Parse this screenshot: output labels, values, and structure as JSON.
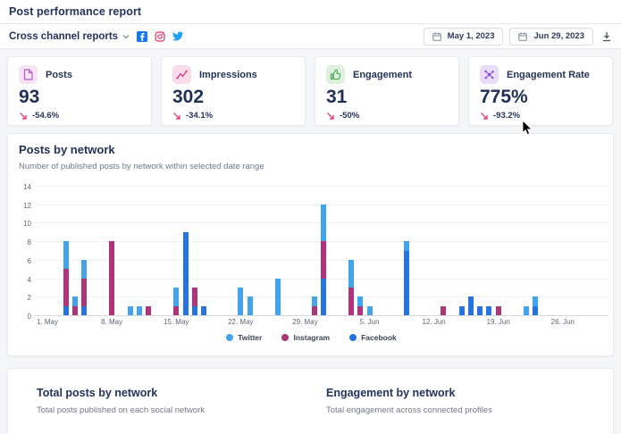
{
  "header": {
    "title": "Post performance report"
  },
  "toolbar": {
    "report_selector": "Cross channel reports",
    "icons": [
      "facebook-icon",
      "instagram-icon",
      "twitter-icon"
    ],
    "date_from": "May 1, 2023",
    "date_to": "Jun 29, 2023",
    "download_icon": "download-icon"
  },
  "stats": [
    {
      "label": "Posts",
      "value": "93",
      "change": "-54.6%",
      "icon": "posts-icon",
      "icon_bg": "#f6e4f5",
      "icon_color": "#b35cc4",
      "change_arrow_color": "#e0447c"
    },
    {
      "label": "Impressions",
      "value": "302",
      "change": "-34.1%",
      "icon": "impressions-icon",
      "icon_bg": "#fadbe9",
      "icon_color": "#d63384",
      "change_arrow_color": "#e0447c"
    },
    {
      "label": "Engagement",
      "value": "31",
      "change": "-50%",
      "icon": "engagement-icon",
      "icon_bg": "#def0de",
      "icon_color": "#44a04a",
      "change_arrow_color": "#e0447c"
    },
    {
      "label": "Engagement Rate",
      "value": "775%",
      "change": "-93.2%",
      "icon": "engagement-rate-icon",
      "icon_bg": "#e8dcf8",
      "icon_color": "#8247d6",
      "change_arrow_color": "#e0447c"
    }
  ],
  "chart_section": {
    "title": "Posts by network",
    "subtitle": "Number of published posts by network within selected date range"
  },
  "chart_data": {
    "type": "bar",
    "stacked": true,
    "title": "Posts by network",
    "xlabel": "",
    "ylabel": "",
    "ylim": [
      0,
      14
    ],
    "y_ticks": [
      0,
      2,
      4,
      6,
      8,
      10,
      12,
      14
    ],
    "grid": true,
    "legend_position": "bottom",
    "x_tick_labels": [
      "1. May",
      "8. May",
      "15. May",
      "22. May",
      "29. May",
      "5. Jun",
      "12. Jun",
      "19. Jun",
      "26. Jun"
    ],
    "x_tick_days": [
      0,
      7,
      14,
      21,
      28,
      35,
      42,
      49,
      56
    ],
    "date_range": [
      "May 1, 2023",
      "Jun 29, 2023"
    ],
    "stack_order_bottom_to_top": [
      "facebook",
      "instagram",
      "twitter"
    ],
    "colors": {
      "twitter": "#41a4ed",
      "instagram": "#b13478",
      "facebook": "#2673e2"
    },
    "legend": [
      {
        "name": "Twitter",
        "color": "#41a4ed"
      },
      {
        "name": "Instagram",
        "color": "#b13478"
      },
      {
        "name": "Facebook",
        "color": "#2673e2"
      }
    ],
    "bars": [
      {
        "day": 2,
        "date": "May 3",
        "facebook": 1,
        "instagram": 4,
        "twitter": 3
      },
      {
        "day": 3,
        "date": "May 4",
        "facebook": 0,
        "instagram": 1,
        "twitter": 1
      },
      {
        "day": 4,
        "date": "May 5",
        "facebook": 1,
        "instagram": 3,
        "twitter": 2
      },
      {
        "day": 7,
        "date": "May 8",
        "facebook": 0,
        "instagram": 8,
        "twitter": 0
      },
      {
        "day": 9,
        "date": "May 10",
        "facebook": 0,
        "instagram": 0,
        "twitter": 1
      },
      {
        "day": 10,
        "date": "May 11",
        "facebook": 0,
        "instagram": 0,
        "twitter": 1
      },
      {
        "day": 11,
        "date": "May 12",
        "facebook": 0,
        "instagram": 1,
        "twitter": 0
      },
      {
        "day": 14,
        "date": "May 15",
        "facebook": 0,
        "instagram": 1,
        "twitter": 2
      },
      {
        "day": 15,
        "date": "May 16",
        "facebook": 9,
        "instagram": 0,
        "twitter": 0
      },
      {
        "day": 16,
        "date": "May 17",
        "facebook": 1,
        "instagram": 2,
        "twitter": 0
      },
      {
        "day": 17,
        "date": "May 18",
        "facebook": 1,
        "instagram": 0,
        "twitter": 0
      },
      {
        "day": 21,
        "date": "May 22",
        "facebook": 0,
        "instagram": 0,
        "twitter": 3
      },
      {
        "day": 22,
        "date": "May 23",
        "facebook": 0,
        "instagram": 0,
        "twitter": 2
      },
      {
        "day": 25,
        "date": "May 26",
        "facebook": 0,
        "instagram": 0,
        "twitter": 4
      },
      {
        "day": 29,
        "date": "May 30",
        "facebook": 0,
        "instagram": 1,
        "twitter": 1
      },
      {
        "day": 30,
        "date": "May 31",
        "facebook": 4,
        "instagram": 4,
        "twitter": 4
      },
      {
        "day": 33,
        "date": "Jun 3",
        "facebook": 0,
        "instagram": 3,
        "twitter": 3
      },
      {
        "day": 34,
        "date": "Jun 4",
        "facebook": 0,
        "instagram": 1,
        "twitter": 1
      },
      {
        "day": 35,
        "date": "Jun 5",
        "facebook": 0,
        "instagram": 0,
        "twitter": 1
      },
      {
        "day": 39,
        "date": "Jun 9",
        "facebook": 7,
        "instagram": 0,
        "twitter": 1
      },
      {
        "day": 43,
        "date": "Jun 13",
        "facebook": 0,
        "instagram": 1,
        "twitter": 0
      },
      {
        "day": 45,
        "date": "Jun 15",
        "facebook": 1,
        "instagram": 0,
        "twitter": 0
      },
      {
        "day": 46,
        "date": "Jun 16",
        "facebook": 2,
        "instagram": 0,
        "twitter": 0
      },
      {
        "day": 47,
        "date": "Jun 17",
        "facebook": 1,
        "instagram": 0,
        "twitter": 0
      },
      {
        "day": 48,
        "date": "Jun 18",
        "facebook": 1,
        "instagram": 0,
        "twitter": 0
      },
      {
        "day": 49,
        "date": "Jun 19",
        "facebook": 0,
        "instagram": 1,
        "twitter": 0
      },
      {
        "day": 52,
        "date": "Jun 22",
        "facebook": 0,
        "instagram": 0,
        "twitter": 1
      },
      {
        "day": 53,
        "date": "Jun 23",
        "facebook": 1,
        "instagram": 0,
        "twitter": 1
      }
    ]
  },
  "bottom_sections": [
    {
      "title": "Total posts by network",
      "subtitle": "Total posts published on each social network"
    },
    {
      "title": "Engagement by network",
      "subtitle": "Total engagement across connected profiles"
    }
  ]
}
